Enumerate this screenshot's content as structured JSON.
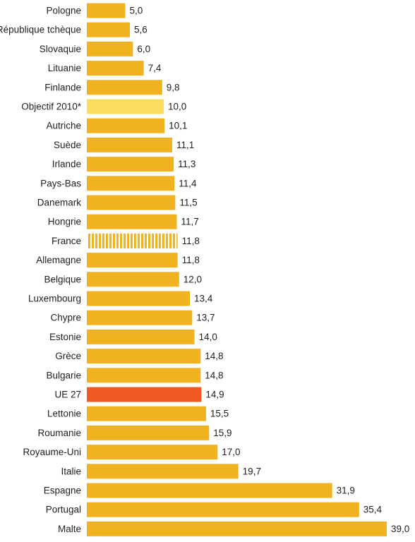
{
  "chart_data": {
    "type": "bar",
    "orientation": "horizontal",
    "categories": [
      "Pologne",
      "République tchèque",
      "Slovaquie",
      "Lituanie",
      "Finlande",
      "Objectif 2010*",
      "Autriche",
      "Suède",
      "Irlande",
      "Pays-Bas",
      "Danemark",
      "Hongrie",
      "France",
      "Allemagne",
      "Belgique",
      "Luxembourg",
      "Chypre",
      "Estonie",
      "Grèce",
      "Bulgarie",
      "UE 27",
      "Lettonie",
      "Roumanie",
      "Royaume-Uni",
      "Italie",
      "Espagne",
      "Portugal",
      "Malte"
    ],
    "values": [
      5.0,
      5.6,
      6.0,
      7.4,
      9.8,
      10.0,
      10.1,
      11.1,
      11.3,
      11.4,
      11.5,
      11.7,
      11.8,
      11.8,
      12.0,
      13.4,
      13.7,
      14.0,
      14.8,
      14.8,
      14.9,
      15.5,
      15.9,
      17.0,
      19.7,
      31.9,
      35.4,
      39.0
    ],
    "value_labels": [
      "5,0",
      "5,6",
      "6,0",
      "7,4",
      "9,8",
      "10,0",
      "10,1",
      "11,1",
      "11,3",
      "11,4",
      "11,5",
      "11,7",
      "11,8",
      "11,8",
      "12,0",
      "13,4",
      "13,7",
      "14,0",
      "14,8",
      "14,8",
      "14,9",
      "15,5",
      "15,9",
      "17,0",
      "19,7",
      "31,9",
      "35,4",
      "39,0"
    ],
    "highlights": {
      "Objectif 2010*": "target",
      "France": "striped",
      "UE 27": "average"
    },
    "colors": {
      "default": "#f0b21f",
      "target": "#fcdc5c",
      "striped": "#f0b21f",
      "average": "#f05a22"
    },
    "xlim": [
      0,
      39
    ],
    "title": "",
    "xlabel": "",
    "ylabel": ""
  }
}
